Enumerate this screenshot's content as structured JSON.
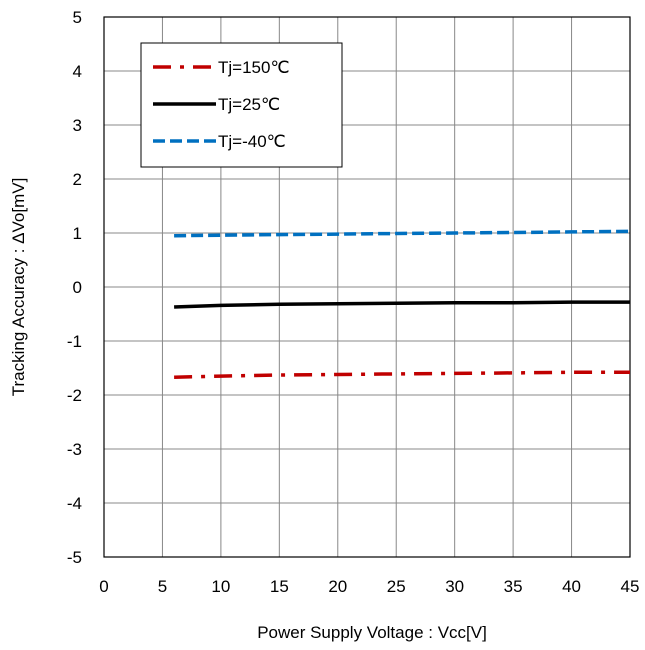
{
  "chart_data": {
    "type": "line",
    "xlabel": "Power Supply Voltage : Vcc[V]",
    "ylabel": "Tracking Accuracy : ΔVo[mV]",
    "xlim": [
      0,
      45
    ],
    "ylim": [
      -5,
      5
    ],
    "xticks": [
      0,
      5,
      10,
      15,
      20,
      25,
      30,
      35,
      40,
      45
    ],
    "yticks": [
      -5,
      -4,
      -3,
      -2,
      -1,
      0,
      1,
      2,
      3,
      4,
      5
    ],
    "grid": true,
    "legend_position": "top-left",
    "series": [
      {
        "name": "Tj=150℃",
        "color": "#c00000",
        "style": "dash-dot",
        "x": [
          6,
          10,
          15,
          20,
          25,
          30,
          35,
          40,
          45
        ],
        "y": [
          -1.67,
          -1.65,
          -1.63,
          -1.62,
          -1.61,
          -1.6,
          -1.59,
          -1.58,
          -1.58
        ]
      },
      {
        "name": "Tj=25℃",
        "color": "#000000",
        "style": "solid",
        "x": [
          6,
          10,
          15,
          20,
          25,
          30,
          35,
          40,
          45
        ],
        "y": [
          -0.37,
          -0.34,
          -0.32,
          -0.31,
          -0.3,
          -0.29,
          -0.29,
          -0.28,
          -0.28
        ]
      },
      {
        "name": "Tj=-40℃",
        "color": "#0070c0",
        "style": "dashed",
        "x": [
          6,
          10,
          15,
          20,
          25,
          30,
          35,
          40,
          45
        ],
        "y": [
          0.95,
          0.96,
          0.97,
          0.98,
          0.99,
          1.0,
          1.01,
          1.02,
          1.03
        ]
      }
    ]
  }
}
